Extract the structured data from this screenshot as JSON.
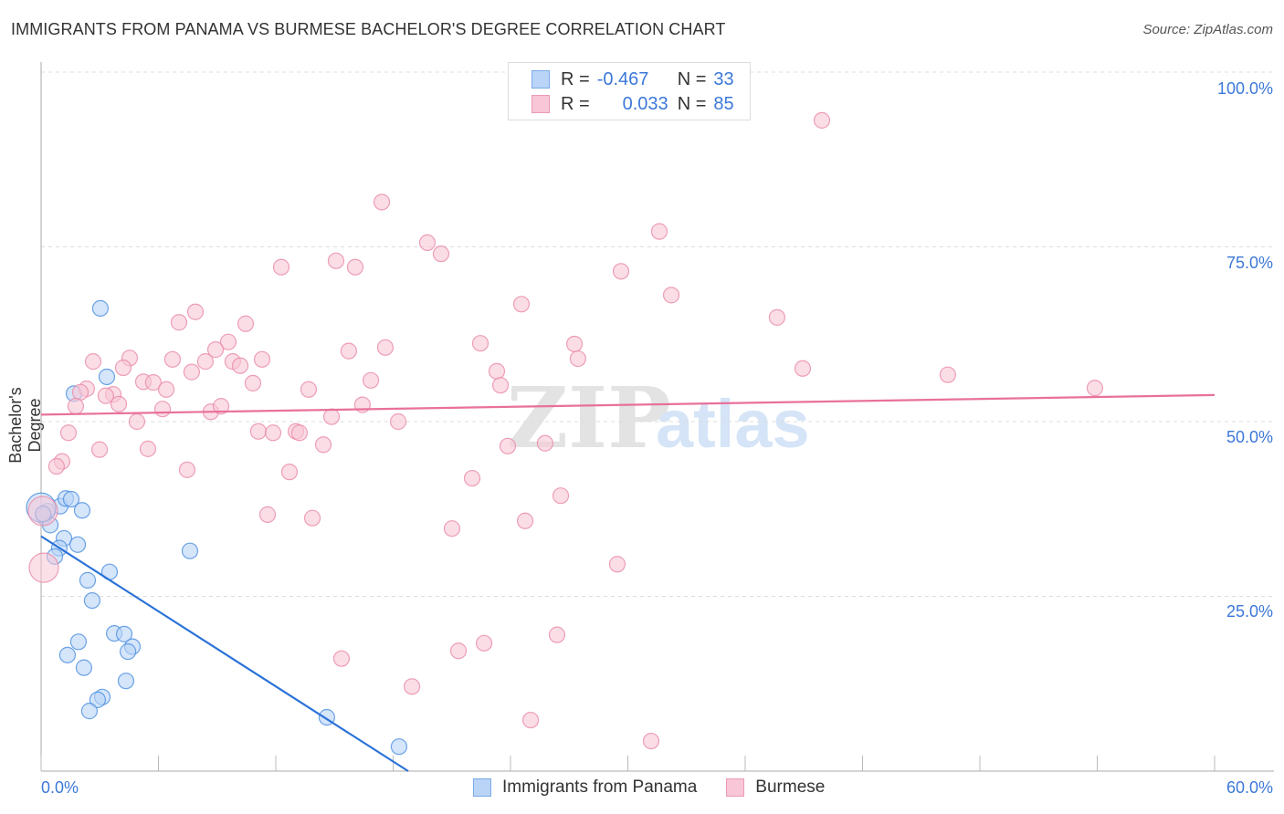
{
  "title": "IMMIGRANTS FROM PANAMA VS BURMESE BACHELOR'S DEGREE CORRELATION CHART",
  "source": "Source: ZipAtlas.com",
  "watermark": "ZIPatlas",
  "legend": {
    "rows": [
      {
        "r_label": "R =",
        "r_value": "-0.467",
        "n_label": "N =",
        "n_value": "33"
      },
      {
        "r_label": "R =",
        "r_value": "0.033",
        "n_label": "N =",
        "n_value": "85"
      }
    ]
  },
  "chart_data": {
    "type": "scatter",
    "title": "IMMIGRANTS FROM PANAMA VS BURMESE BACHELOR'S DEGREE CORRELATION CHART",
    "xlabel": "",
    "ylabel": "Bachelor's Degree",
    "xlim": [
      0,
      60
    ],
    "ylim": [
      0,
      100
    ],
    "x_tick_labels": [
      "0.0%",
      "60.0%"
    ],
    "y_tick_labels": [
      "100.0%",
      "75.0%",
      "50.0%",
      "25.0%"
    ],
    "y_ticks": [
      100,
      75,
      50,
      25
    ],
    "grid": true,
    "legend_position": "top-center",
    "series": [
      {
        "name": "Immigrants from Panama",
        "color": "#4a8fe0",
        "fill": "#b9d4f6",
        "trend": {
          "x": [
            0,
            18.77
          ],
          "y": [
            33.6,
            0
          ],
          "color": "#2a72d8"
        },
        "large": [
          31
        ],
        "points": [
          [
            3.03,
            66.2
          ],
          [
            3.36,
            56.4
          ],
          [
            1.68,
            54.0
          ],
          [
            0.98,
            37.9
          ],
          [
            1.26,
            39.0
          ],
          [
            1.54,
            38.9
          ],
          [
            2.1,
            37.3
          ],
          [
            0.33,
            37.2
          ],
          [
            0.14,
            36.4
          ],
          [
            0.47,
            35.2
          ],
          [
            1.17,
            33.3
          ],
          [
            1.87,
            32.4
          ],
          [
            0.93,
            31.9
          ],
          [
            0.7,
            30.7
          ],
          [
            7.61,
            31.5
          ],
          [
            3.5,
            28.5
          ],
          [
            2.38,
            27.3
          ],
          [
            2.61,
            24.4
          ],
          [
            1.91,
            18.5
          ],
          [
            1.35,
            16.6
          ],
          [
            3.74,
            19.7
          ],
          [
            4.25,
            19.6
          ],
          [
            4.67,
            17.8
          ],
          [
            4.44,
            17.1
          ],
          [
            2.19,
            14.8
          ],
          [
            4.34,
            12.9
          ],
          [
            3.13,
            10.6
          ],
          [
            2.89,
            10.2
          ],
          [
            2.47,
            8.6
          ],
          [
            14.61,
            7.7
          ],
          [
            18.3,
            3.5
          ],
          [
            0.0,
            37.7
          ],
          [
            0.1,
            36.8
          ]
        ]
      },
      {
        "name": "Burmese",
        "color": "#e88aa8",
        "fill": "#f8c6d6",
        "trend": {
          "x": [
            0,
            60
          ],
          "y": [
            51.0,
            53.8
          ],
          "color": "#e8719a"
        },
        "large": [
          76,
          77
        ],
        "points": [
          [
            39.92,
            93.1
          ],
          [
            17.42,
            81.4
          ],
          [
            19.75,
            75.6
          ],
          [
            20.45,
            74.0
          ],
          [
            31.61,
            77.2
          ],
          [
            12.28,
            72.1
          ],
          [
            15.08,
            73.0
          ],
          [
            16.06,
            72.1
          ],
          [
            29.65,
            71.5
          ],
          [
            32.22,
            68.1
          ],
          [
            24.56,
            66.8
          ],
          [
            37.63,
            64.9
          ],
          [
            7.89,
            65.7
          ],
          [
            7.05,
            64.2
          ],
          [
            10.46,
            64.0
          ],
          [
            2.66,
            58.6
          ],
          [
            4.53,
            59.1
          ],
          [
            9.57,
            61.4
          ],
          [
            8.92,
            60.3
          ],
          [
            6.72,
            58.9
          ],
          [
            8.4,
            58.6
          ],
          [
            9.8,
            58.6
          ],
          [
            10.18,
            58.0
          ],
          [
            11.3,
            58.9
          ],
          [
            15.73,
            60.1
          ],
          [
            17.6,
            60.6
          ],
          [
            22.46,
            61.2
          ],
          [
            27.27,
            61.1
          ],
          [
            27.45,
            59.0
          ],
          [
            38.94,
            57.6
          ],
          [
            46.36,
            56.7
          ],
          [
            53.88,
            54.8
          ],
          [
            7.7,
            57.1
          ],
          [
            4.2,
            57.7
          ],
          [
            2.33,
            54.7
          ],
          [
            2.01,
            54.2
          ],
          [
            5.23,
            55.7
          ],
          [
            5.74,
            55.6
          ],
          [
            6.4,
            54.6
          ],
          [
            3.69,
            53.9
          ],
          [
            3.31,
            53.7
          ],
          [
            3.97,
            52.5
          ],
          [
            1.77,
            52.2
          ],
          [
            10.83,
            55.5
          ],
          [
            13.68,
            54.6
          ],
          [
            16.86,
            55.9
          ],
          [
            23.3,
            57.2
          ],
          [
            23.49,
            55.2
          ],
          [
            6.21,
            51.8
          ],
          [
            8.68,
            51.4
          ],
          [
            9.2,
            52.2
          ],
          [
            16.43,
            52.4
          ],
          [
            4.9,
            50.0
          ],
          [
            14.85,
            50.7
          ],
          [
            18.26,
            50.0
          ],
          [
            1.4,
            48.4
          ],
          [
            11.11,
            48.6
          ],
          [
            11.86,
            48.4
          ],
          [
            13.03,
            48.6
          ],
          [
            13.21,
            48.4
          ],
          [
            2.99,
            46.0
          ],
          [
            5.46,
            46.1
          ],
          [
            14.43,
            46.7
          ],
          [
            23.86,
            46.5
          ],
          [
            25.77,
            46.9
          ],
          [
            1.07,
            44.3
          ],
          [
            0.79,
            43.6
          ],
          [
            7.47,
            43.1
          ],
          [
            12.7,
            42.8
          ],
          [
            22.04,
            41.9
          ],
          [
            26.57,
            39.4
          ],
          [
            11.58,
            36.7
          ],
          [
            13.87,
            36.2
          ],
          [
            21.01,
            34.7
          ],
          [
            24.75,
            35.8
          ],
          [
            29.46,
            29.6
          ],
          [
            0.14,
            29.1
          ],
          [
            0.09,
            37.2
          ],
          [
            15.36,
            16.1
          ],
          [
            21.34,
            17.2
          ],
          [
            22.65,
            18.3
          ],
          [
            26.38,
            19.5
          ],
          [
            18.96,
            12.1
          ],
          [
            25.03,
            7.3
          ],
          [
            31.19,
            4.3
          ]
        ]
      }
    ]
  }
}
